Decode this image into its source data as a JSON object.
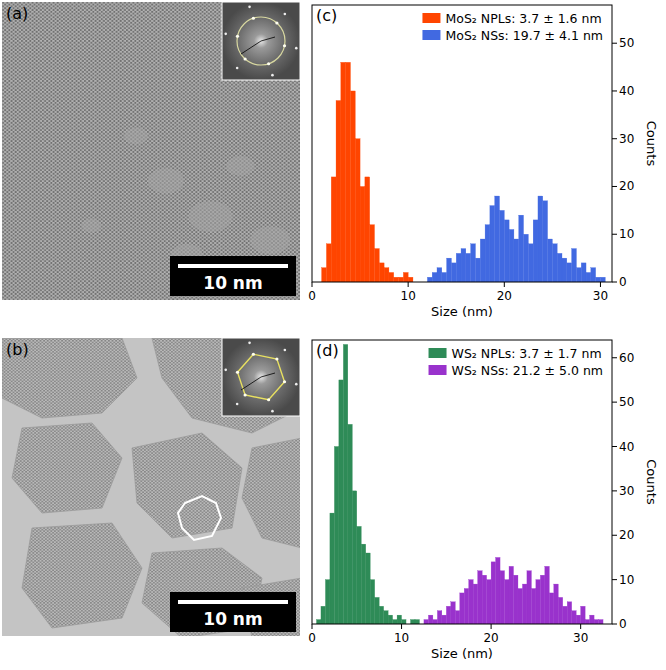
{
  "images": [
    {
      "label": "(a)",
      "scale_bar": "10 nm"
    },
    {
      "label": "(b)",
      "scale_bar": "10 nm"
    }
  ],
  "chart_data": [
    {
      "type": "histogram",
      "annotations": [
        "(c)"
      ],
      "x_label": "Size (nm)",
      "y_label": "Counts",
      "xlim": [
        0,
        31.2
      ],
      "xticks": [
        0,
        10,
        20,
        30
      ],
      "ylim": [
        0,
        58
      ],
      "yticks": [
        0,
        10,
        20,
        30,
        40,
        50
      ],
      "legend": "upper right",
      "grid": false,
      "series": [
        {
          "name": "MoS₂ NPLs: 3.7 ± 1.6 nm",
          "color": "#ff4500",
          "bins": [
            1.0,
            1.5,
            2.0,
            2.5,
            3.0,
            3.5,
            4.0,
            4.5,
            5.0,
            5.5,
            6.0,
            6.5,
            7.0,
            7.5,
            8.0,
            8.5,
            9.0,
            9.5,
            10.0,
            10.5
          ],
          "values": [
            3,
            8,
            22,
            38,
            46,
            46,
            40,
            30,
            20,
            22,
            12,
            7,
            4,
            3,
            2,
            1,
            1,
            2,
            1
          ]
        },
        {
          "name": "MoS₂ NSs: 19.7 ± 4.1 nm",
          "color": "#4169e1",
          "bins": [
            12.0,
            12.5,
            13.0,
            13.5,
            14.0,
            14.5,
            15.0,
            15.5,
            16.0,
            16.5,
            17.0,
            17.5,
            18.0,
            18.5,
            19.0,
            19.5,
            20.0,
            20.5,
            21.0,
            21.5,
            22.0,
            22.5,
            23.0,
            23.5,
            24.0,
            24.5,
            25.0,
            25.5,
            26.0,
            26.5,
            27.0,
            27.5,
            28.0,
            28.5,
            29.0,
            29.5,
            30.0,
            30.5
          ],
          "values": [
            1,
            2,
            3,
            2,
            5,
            4,
            6,
            7,
            6,
            8,
            5,
            9,
            12,
            16,
            18,
            15,
            13,
            11,
            9,
            14,
            10,
            8,
            13,
            18,
            17,
            9,
            8,
            6,
            5,
            4,
            7,
            3,
            4,
            2,
            3,
            1,
            1
          ]
        }
      ]
    },
    {
      "type": "histogram",
      "annotations": [
        "(d)"
      ],
      "x_label": "Size (nm)",
      "y_label": "Counts",
      "xlim": [
        0,
        33.5
      ],
      "xticks": [
        0,
        10,
        20,
        30
      ],
      "ylim": [
        0,
        64
      ],
      "yticks": [
        0,
        10,
        20,
        30,
        40,
        50,
        60
      ],
      "legend": "upper right",
      "grid": false,
      "series": [
        {
          "name": "WS₂ NPLs: 3.7 ± 1.7 nm",
          "color": "#2e8b57",
          "bins": [
            0.5,
            1.0,
            1.5,
            2.0,
            2.5,
            3.0,
            3.5,
            4.0,
            4.5,
            5.0,
            5.5,
            6.0,
            6.5,
            7.0,
            7.5,
            8.0,
            8.5,
            9.0,
            9.5,
            10.0,
            10.5,
            11.0,
            11.5,
            12.0
          ],
          "values": [
            1,
            4,
            10,
            25,
            40,
            55,
            63,
            45,
            30,
            22,
            18,
            16,
            10,
            6,
            4,
            3,
            2,
            1,
            2,
            1,
            0,
            1,
            1
          ]
        },
        {
          "name": "WS₂ NSs: 21.2 ± 5.0 nm",
          "color": "#9932cc",
          "bins": [
            12.5,
            13.0,
            13.5,
            14.0,
            14.5,
            15.0,
            15.5,
            16.0,
            16.5,
            17.0,
            17.5,
            18.0,
            18.5,
            19.0,
            19.5,
            20.0,
            20.5,
            21.0,
            21.5,
            22.0,
            22.5,
            23.0,
            23.5,
            24.0,
            24.5,
            25.0,
            25.5,
            26.0,
            26.5,
            27.0,
            27.5,
            28.0,
            28.5,
            29.0,
            29.5,
            30.0,
            30.5,
            31.0,
            31.5,
            32.0,
            32.5
          ],
          "values": [
            1,
            2,
            1,
            3,
            2,
            4,
            5,
            3,
            7,
            8,
            10,
            9,
            12,
            11,
            10,
            14,
            15,
            12,
            10,
            13,
            11,
            8,
            9,
            12,
            8,
            10,
            11,
            13,
            7,
            9,
            6,
            4,
            5,
            3,
            2,
            4,
            1,
            2,
            1,
            1
          ]
        }
      ]
    }
  ]
}
